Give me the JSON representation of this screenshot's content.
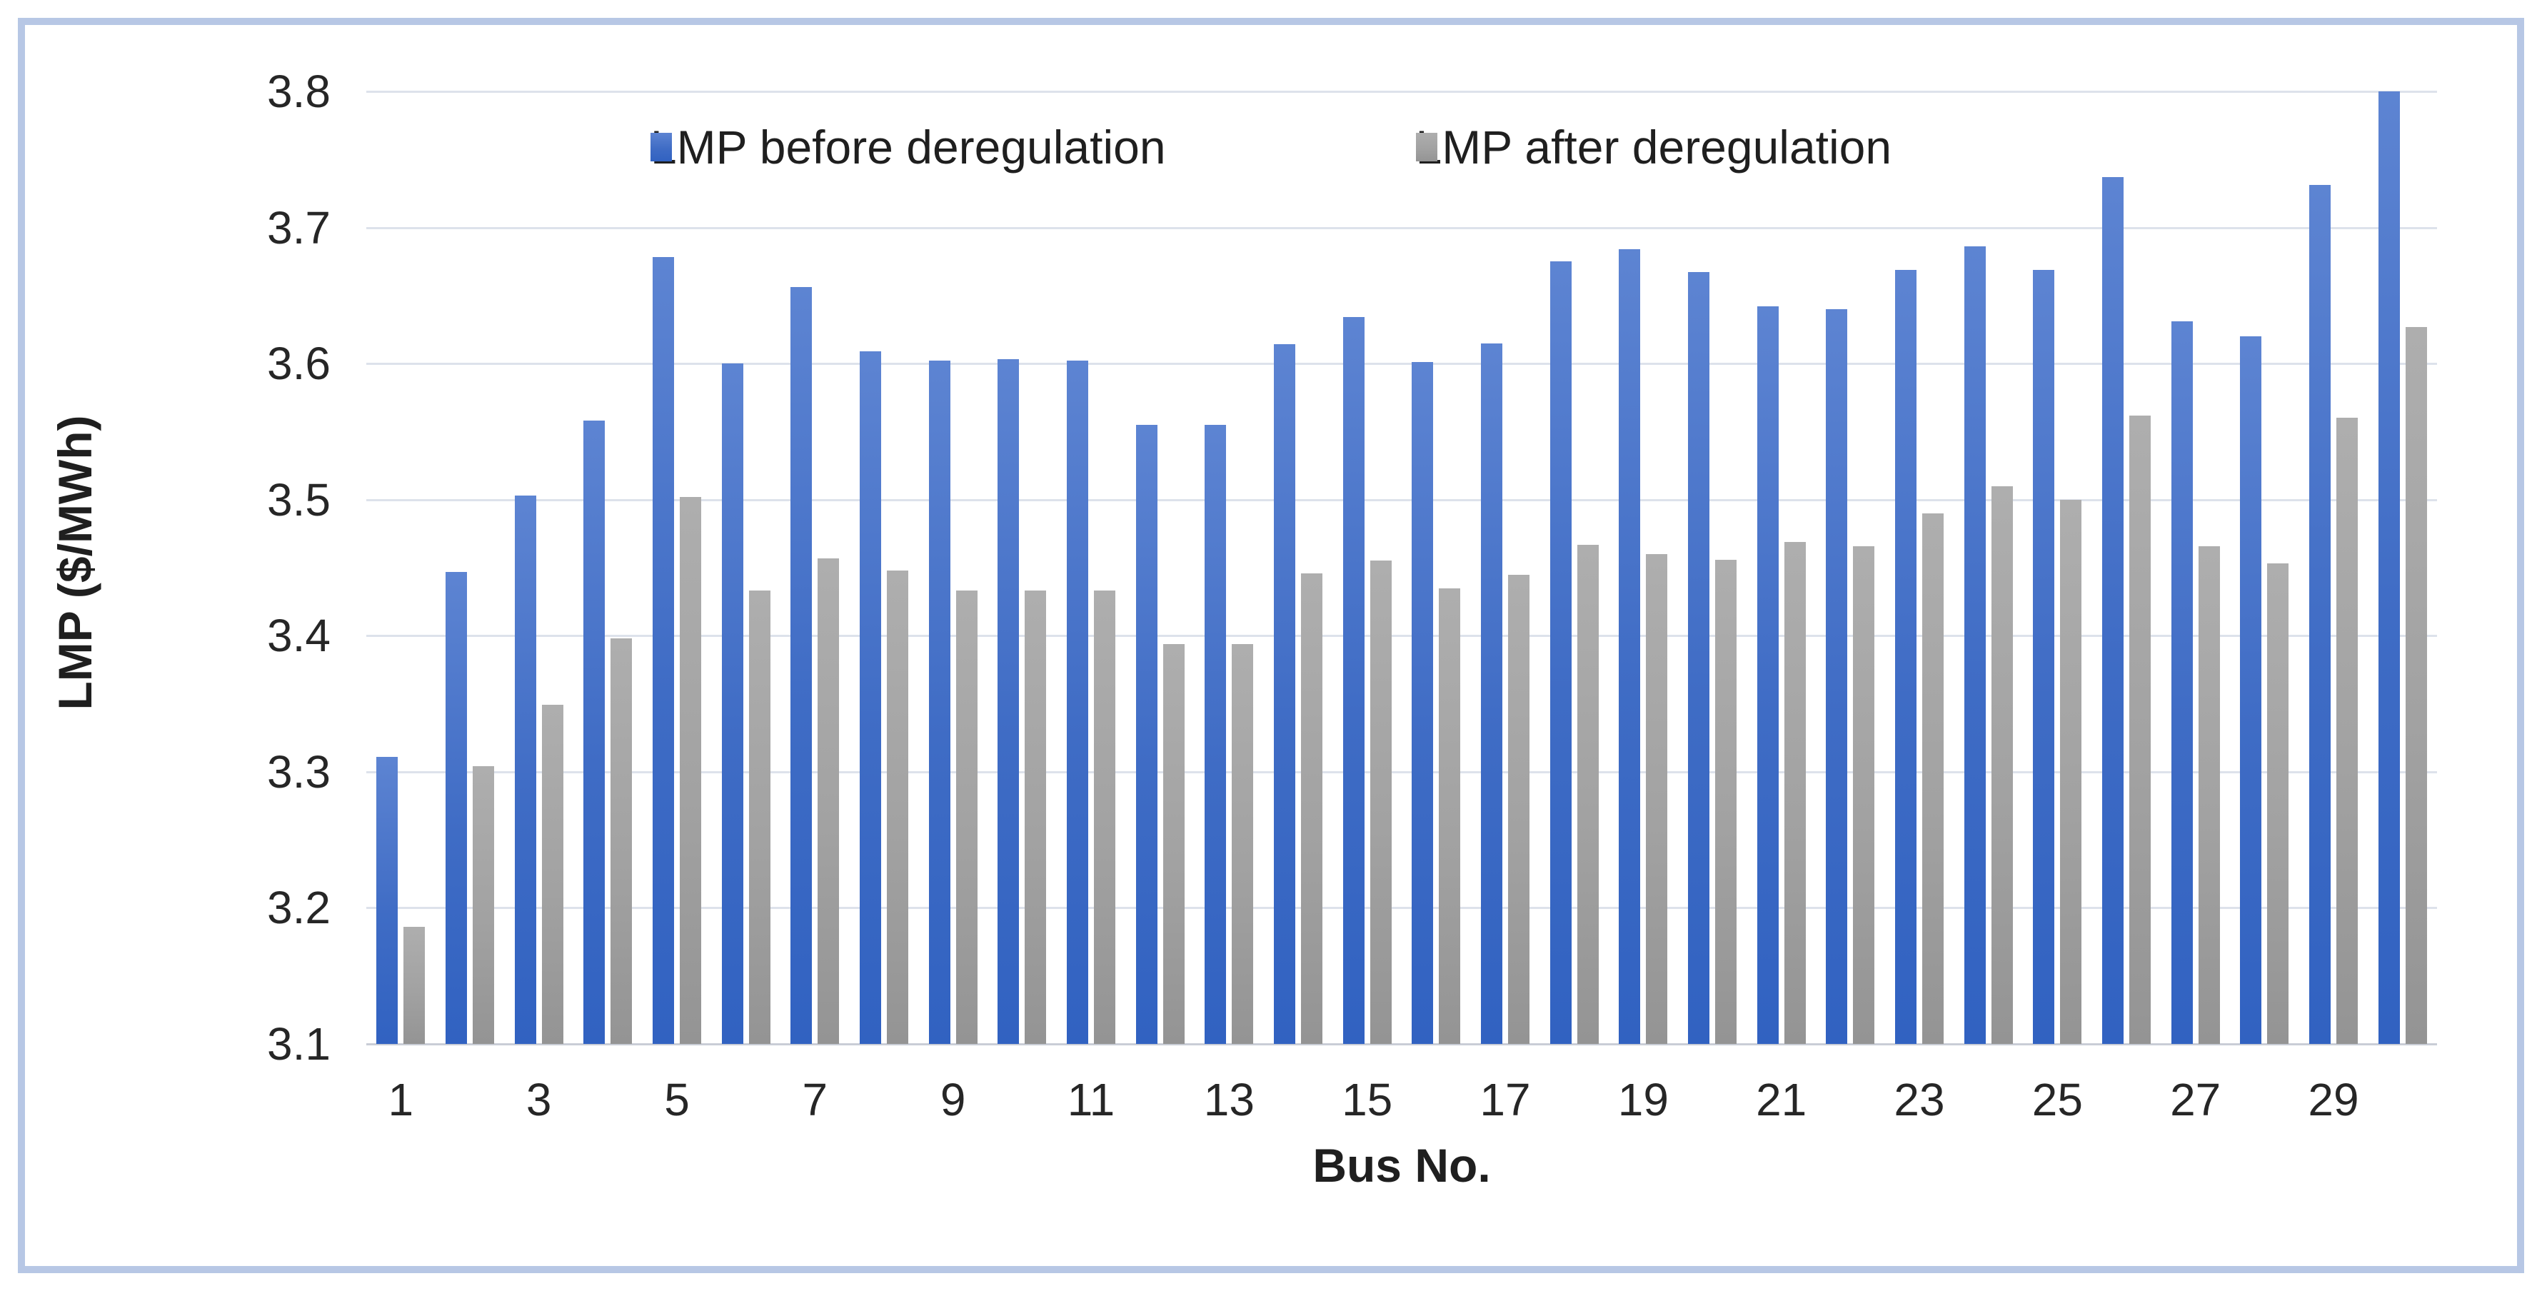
{
  "figure": {
    "background": "#ffffff",
    "border_color": "#b7c7e5",
    "grid_color": "#dde2eb",
    "axis_line_color": "#c9cdd6",
    "text_color": "#1f1f1f"
  },
  "chart_data": {
    "type": "bar",
    "title": "",
    "xlabel": "Bus No.",
    "ylabel": "LMP ($/MWh)",
    "ylim": [
      3.1,
      3.8
    ],
    "ytick_step": 0.1,
    "ytick_labels": [
      "3.8",
      "3.7",
      "3.6",
      "3.5",
      "3.4",
      "3.3",
      "3.2",
      "3.1"
    ],
    "xtick_labels": [
      "1",
      "3",
      "5",
      "7",
      "9",
      "11",
      "13",
      "15",
      "17",
      "19",
      "21",
      "23",
      "25",
      "27",
      "29"
    ],
    "categories": [
      "1",
      "2",
      "3",
      "4",
      "5",
      "6",
      "7",
      "8",
      "9",
      "10",
      "11",
      "12",
      "13",
      "14",
      "15",
      "16",
      "17",
      "18",
      "19",
      "20",
      "21",
      "22",
      "23",
      "24",
      "25",
      "26",
      "27",
      "28",
      "29",
      "30"
    ],
    "grid": "horizontal",
    "legend_position": "top-center",
    "series": [
      {
        "name": "LMP before deregulation",
        "color": "#4472c4",
        "gradient": [
          "#5d84d2",
          "#3162c1"
        ],
        "values": [
          3.311,
          3.447,
          3.503,
          3.558,
          3.678,
          3.6,
          3.656,
          3.609,
          3.602,
          3.603,
          3.602,
          3.555,
          3.555,
          3.614,
          3.634,
          3.601,
          3.615,
          3.675,
          3.684,
          3.667,
          3.642,
          3.64,
          3.669,
          3.686,
          3.669,
          3.737,
          3.631,
          3.62,
          3.731,
          3.8
        ]
      },
      {
        "name": "LMP after deregulation",
        "color": "#a6a6a6",
        "gradient": [
          "#aeaeae",
          "#949494"
        ],
        "values": [
          3.186,
          3.304,
          3.349,
          3.398,
          3.502,
          3.433,
          3.457,
          3.448,
          3.433,
          3.433,
          3.433,
          3.394,
          3.394,
          3.446,
          3.455,
          3.435,
          3.445,
          3.467,
          3.46,
          3.456,
          3.469,
          3.466,
          3.49,
          3.51,
          3.5,
          3.562,
          3.466,
          3.453,
          3.56,
          3.627
        ]
      }
    ]
  }
}
